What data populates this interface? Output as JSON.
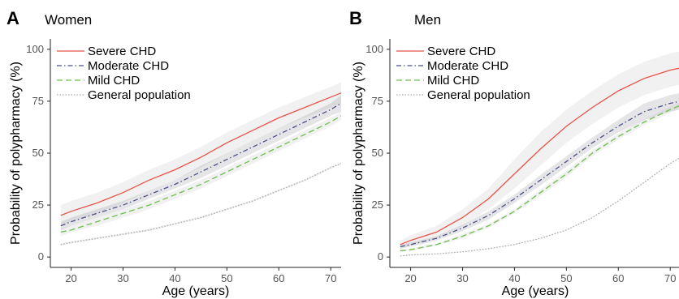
{
  "chart_data": [
    {
      "type": "line",
      "panel_letter": "A",
      "title": "Women",
      "xlabel": "Age (years)",
      "ylabel": "Probability of polypharmacy (%)",
      "xlim": [
        16,
        72
      ],
      "ylim": [
        -5,
        105
      ],
      "xticks": [
        20,
        30,
        40,
        50,
        60,
        70
      ],
      "yticks": [
        0,
        25,
        50,
        75,
        100
      ],
      "legend_position": "top-left",
      "grid": false,
      "x": [
        18,
        20,
        25,
        30,
        35,
        40,
        45,
        50,
        55,
        60,
        65,
        70,
        72
      ],
      "series": [
        {
          "name": "Severe CHD",
          "color": "#e8534a",
          "style": "solid",
          "values": [
            20,
            22,
            26,
            31,
            37,
            42,
            48,
            55,
            61,
            67,
            72,
            77,
            79
          ],
          "ci_lower": [
            15,
            17,
            21,
            26,
            32,
            37,
            43,
            50,
            56,
            62,
            67,
            72,
            74
          ],
          "ci_upper": [
            25,
            27,
            31,
            36,
            42,
            47,
            53,
            60,
            66,
            72,
            77,
            82,
            84
          ]
        },
        {
          "name": "Moderate CHD",
          "color": "#4b4f8a",
          "style": "dashdot",
          "values": [
            15,
            17,
            21,
            25,
            30,
            35,
            41,
            47,
            53,
            59,
            65,
            71,
            74
          ],
          "ci_lower": [
            13,
            15,
            19,
            23,
            28,
            33,
            38,
            44,
            50,
            56,
            62,
            68,
            70
          ],
          "ci_upper": [
            17,
            19,
            23,
            27,
            32,
            37,
            44,
            50,
            56,
            62,
            68,
            74,
            78
          ]
        },
        {
          "name": "Mild CHD",
          "color": "#6cbf4a",
          "style": "dashed",
          "values": [
            12,
            13,
            17,
            21,
            25,
            30,
            35,
            41,
            47,
            53,
            59,
            65,
            68
          ],
          "ci_lower": [
            10,
            12,
            15,
            19,
            23,
            28,
            33,
            39,
            45,
            51,
            57,
            63,
            66
          ],
          "ci_upper": [
            14,
            15,
            19,
            23,
            27,
            32,
            37,
            43,
            49,
            55,
            61,
            67,
            70
          ]
        },
        {
          "name": "General population",
          "color": "#aaaaaa",
          "style": "dotted",
          "values": [
            6,
            7,
            9,
            11,
            13,
            16,
            19,
            23,
            27,
            32,
            37,
            43,
            45
          ],
          "ci_lower": [
            5.5,
            6.5,
            8.5,
            10.5,
            12.5,
            15.5,
            18.5,
            22.5,
            26.5,
            31.5,
            36.5,
            42.5,
            44.5
          ],
          "ci_upper": [
            6.5,
            7.5,
            9.5,
            11.5,
            13.5,
            16.5,
            19.5,
            23.5,
            27.5,
            32.5,
            37.5,
            43.5,
            45.5
          ]
        }
      ]
    },
    {
      "type": "line",
      "panel_letter": "B",
      "title": "Men",
      "xlabel": "Age (years)",
      "ylabel": "Probability of polypharmacy (%)",
      "xlim": [
        16,
        72
      ],
      "ylim": [
        -5,
        105
      ],
      "xticks": [
        20,
        30,
        40,
        50,
        60,
        70
      ],
      "xtick_labels": [
        "20",
        "30",
        "40",
        "50",
        "60",
        "70"
      ],
      "yticks": [
        0,
        25,
        50,
        75,
        100
      ],
      "legend_position": "top-left",
      "grid": false,
      "x": [
        18,
        20,
        25,
        30,
        35,
        40,
        45,
        50,
        55,
        60,
        65,
        70,
        72
      ],
      "series": [
        {
          "name": "Severe CHD",
          "color": "#e8534a",
          "style": "solid",
          "values": [
            6,
            8,
            12,
            19,
            28,
            40,
            52,
            63,
            72,
            80,
            86,
            90,
            91
          ],
          "ci_lower": [
            4,
            5.5,
            9,
            15,
            23,
            33,
            44,
            55,
            64,
            72,
            78,
            82,
            83
          ],
          "ci_upper": [
            8,
            10.5,
            15,
            23,
            33,
            47,
            60,
            71,
            80,
            88,
            94,
            98,
            99
          ]
        },
        {
          "name": "Moderate CHD",
          "color": "#4b4f8a",
          "style": "dashdot",
          "values": [
            5,
            6,
            9,
            14,
            20,
            28,
            37,
            46,
            55,
            63,
            70,
            74,
            75
          ],
          "ci_lower": [
            4,
            5,
            8,
            12.5,
            18,
            26,
            34.5,
            43.5,
            52.5,
            60,
            66,
            70,
            71
          ],
          "ci_upper": [
            6,
            7,
            10,
            15.5,
            22,
            30,
            39.5,
            48.5,
            57.5,
            66,
            74,
            78,
            79
          ]
        },
        {
          "name": "Mild CHD",
          "color": "#6cbf4a",
          "style": "dashed",
          "values": [
            3,
            3.5,
            6,
            10,
            15,
            22,
            31,
            40,
            50,
            58,
            65,
            71,
            73
          ],
          "ci_lower": [
            2.5,
            3,
            5.5,
            9,
            14,
            21,
            29.5,
            38.5,
            48.5,
            56.5,
            63.5,
            69.5,
            71.5
          ],
          "ci_upper": [
            3.5,
            4,
            6.5,
            11,
            16,
            23,
            32.5,
            41.5,
            51.5,
            59.5,
            66.5,
            72.5,
            74.5
          ]
        },
        {
          "name": "General population",
          "color": "#aaaaaa",
          "style": "dotted",
          "values": [
            0.5,
            1,
            1.5,
            2.5,
            4,
            6,
            9,
            13,
            19,
            27,
            36,
            45,
            48
          ],
          "ci_lower": [
            0.3,
            0.8,
            1.3,
            2.3,
            3.8,
            5.8,
            8.8,
            12.8,
            18.8,
            26.8,
            35.8,
            44.8,
            47.8
          ],
          "ci_upper": [
            0.7,
            1.2,
            1.7,
            2.7,
            4.2,
            6.2,
            9.2,
            13.2,
            19.2,
            27.2,
            36.2,
            45.2,
            48.2
          ]
        }
      ]
    }
  ]
}
